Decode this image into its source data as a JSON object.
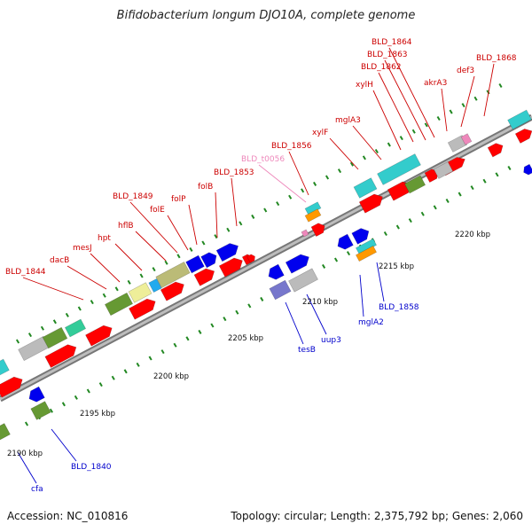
{
  "title": "Bifidobacterium longum DJO10A, complete genome",
  "footer": {
    "accession": "Accession: NC_010816",
    "summary": "Topology: circular; Length: 2,375,792 bp; Genes: 2,060"
  },
  "colors": {
    "red_label": "#cc0000",
    "blue_label": "#0000cc",
    "pink_label": "#ee88bb",
    "backbone": "#8a8a8a",
    "tick": "#228822",
    "gene_red": "#ff0000",
    "gene_blue": "#0000ee",
    "gene_cyan": "#33cccc",
    "gene_olive": "#669933",
    "gene_grey": "#bbbbbb",
    "gene_khaki": "#bbbb77",
    "gene_yellow": "#eeee99",
    "gene_green": "#33cc99",
    "gene_orange": "#ff9900",
    "gene_purple": "#7777cc",
    "gene_pink": "#ee88bb",
    "gene_sky": "#22aaee"
  },
  "kbp_ticks": [
    {
      "label": "2190 kbp"
    },
    {
      "label": "2195 kbp"
    },
    {
      "label": "2200 kbp"
    },
    {
      "label": "2205 kbp"
    },
    {
      "label": "2210 kbp"
    },
    {
      "label": "2215 kbp"
    },
    {
      "label": "2220 kbp"
    }
  ],
  "gene_labels_top": [
    {
      "label": "BLD_1844"
    },
    {
      "label": "dacB"
    },
    {
      "label": "mesJ"
    },
    {
      "label": "hpt"
    },
    {
      "label": "hflB"
    },
    {
      "label": "BLD_1849"
    },
    {
      "label": "folE"
    },
    {
      "label": "folP"
    },
    {
      "label": "folB"
    },
    {
      "label": "BLD_1853"
    },
    {
      "label": "BLD_t0056"
    },
    {
      "label": "BLD_1856"
    },
    {
      "label": "xylF"
    },
    {
      "label": "mglA3"
    },
    {
      "label": "xylH"
    },
    {
      "label": "BLD_1862"
    },
    {
      "label": "BLD_1863"
    },
    {
      "label": "BLD_1864"
    },
    {
      "label": "akrA3"
    },
    {
      "label": "def3"
    },
    {
      "label": "BLD_1868"
    }
  ],
  "gene_labels_bottom": [
    {
      "label": "cfa"
    },
    {
      "label": "BLD_1840"
    },
    {
      "label": "tesB"
    },
    {
      "label": "uup3"
    },
    {
      "label": "mglA2"
    },
    {
      "label": "BLD_1858"
    }
  ]
}
